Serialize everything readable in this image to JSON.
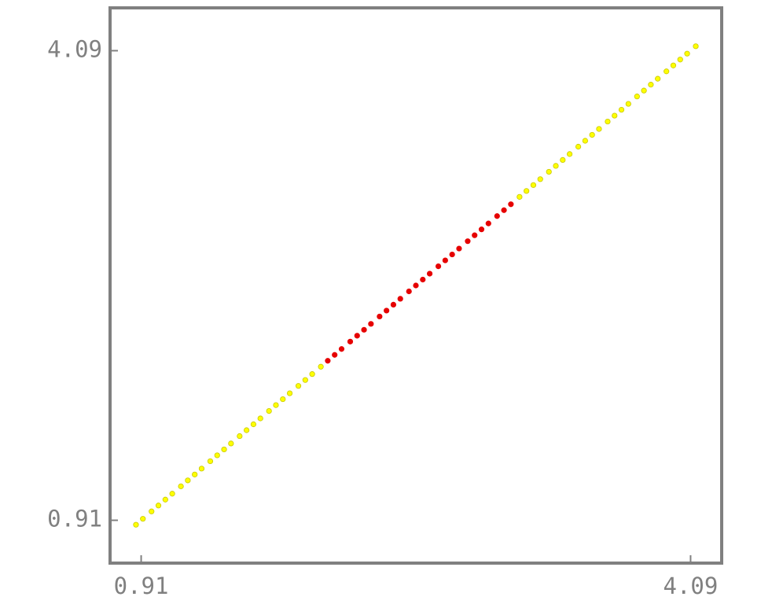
{
  "chart_data": {
    "type": "scatter",
    "xlim": [
      0.73,
      4.27
    ],
    "ylim": [
      0.62,
      4.38
    ],
    "xticks": [
      0.91,
      4.09
    ],
    "yticks": [
      0.91,
      4.09
    ],
    "series": [
      {
        "color": "#ffff00",
        "x": [
          0.88,
          0.92,
          0.97,
          1.01,
          1.05,
          1.09,
          1.14,
          1.18,
          1.22,
          1.26,
          1.31,
          1.35,
          1.39,
          1.43,
          1.48,
          1.52,
          1.56,
          1.6,
          1.65,
          1.69,
          1.73,
          1.77,
          1.82,
          1.86,
          1.9,
          1.95
        ],
        "values": [
          0.88,
          0.92,
          0.97,
          1.01,
          1.05,
          1.09,
          1.14,
          1.18,
          1.22,
          1.26,
          1.31,
          1.35,
          1.39,
          1.43,
          1.48,
          1.52,
          1.56,
          1.6,
          1.65,
          1.69,
          1.73,
          1.77,
          1.82,
          1.86,
          1.9,
          1.95
        ]
      },
      {
        "color": "#e60000",
        "x": [
          1.99,
          2.03,
          2.07,
          2.12,
          2.16,
          2.2,
          2.24,
          2.29,
          2.33,
          2.37,
          2.41,
          2.46,
          2.5,
          2.54,
          2.58,
          2.63,
          2.67,
          2.71,
          2.75,
          2.8,
          2.84,
          2.88,
          2.92,
          2.97,
          3.01,
          3.05
        ],
        "values": [
          1.99,
          2.03,
          2.07,
          2.12,
          2.16,
          2.2,
          2.24,
          2.29,
          2.33,
          2.37,
          2.41,
          2.46,
          2.5,
          2.54,
          2.58,
          2.63,
          2.67,
          2.71,
          2.75,
          2.8,
          2.84,
          2.88,
          2.92,
          2.97,
          3.01,
          3.05
        ]
      },
      {
        "color": "#ffff00",
        "x": [
          3.1,
          3.14,
          3.18,
          3.22,
          3.27,
          3.31,
          3.35,
          3.39,
          3.44,
          3.48,
          3.52,
          3.56,
          3.61,
          3.65,
          3.69,
          3.73,
          3.78,
          3.82,
          3.86,
          3.9,
          3.95,
          3.99,
          4.03,
          4.07,
          4.12
        ],
        "values": [
          3.1,
          3.14,
          3.18,
          3.22,
          3.27,
          3.31,
          3.35,
          3.39,
          3.44,
          3.48,
          3.52,
          3.56,
          3.61,
          3.65,
          3.69,
          3.73,
          3.78,
          3.82,
          3.86,
          3.9,
          3.95,
          3.99,
          4.03,
          4.07,
          4.12
        ]
      }
    ]
  }
}
